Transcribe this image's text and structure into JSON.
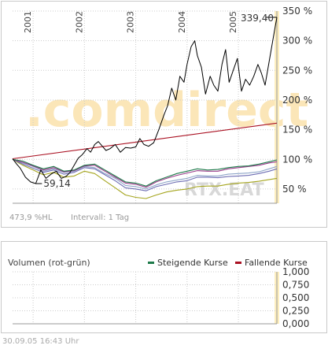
{
  "chart_data": [
    {
      "type": "line",
      "title": "",
      "xlabel": "",
      "ylabel": "",
      "x_range": [
        2000.6,
        2005.75
      ],
      "ylim": [
        26,
        350
      ],
      "y_ticks": [
        50,
        100,
        150,
        200,
        250,
        300,
        350
      ],
      "y_tick_labels": [
        "50 %",
        "100 %",
        "150 %",
        "200 %",
        "250 %",
        "300 %",
        "350 %"
      ],
      "x_ticks": [
        2001,
        2002,
        2003,
        2004,
        2005
      ],
      "x_tick_labels": [
        "2001",
        "2002",
        "2003",
        "2004",
        "2005"
      ],
      "grid": true,
      "annotations": {
        "max_label": "339,40",
        "min_label": "59,14",
        "scale_info": "473,9 %HL",
        "interval": "Intervall: 1 Tag",
        "watermark": ".comdirect",
        "watermark_small": "RTX.EAT"
      },
      "series": [
        {
          "color": "#000000",
          "x": [
            2000.6,
            2000.68,
            2000.75,
            2000.85,
            2000.95,
            2001.05,
            2001.15,
            2001.25,
            2001.35,
            2001.45,
            2001.55,
            2001.65,
            2001.72,
            2001.8,
            2001.88,
            2001.96,
            2002.05,
            2002.12,
            2002.2,
            2002.27,
            2002.35,
            2002.42,
            2002.5,
            2002.6,
            2002.7,
            2002.8,
            2002.9,
            2003.0,
            2003.08,
            2003.16,
            2003.25,
            2003.35,
            2003.45,
            2003.55,
            2003.62,
            2003.7,
            2003.78,
            2003.86,
            2003.94,
            2004.0,
            2004.08,
            2004.15,
            2004.2,
            2004.28,
            2004.36,
            2004.45,
            2004.52,
            2004.6,
            2004.68,
            2004.75,
            2004.82,
            2004.9,
            2004.98,
            2005.06,
            2005.14,
            2005.22,
            2005.3,
            2005.38,
            2005.45,
            2005.52,
            2005.58,
            2005.64,
            2005.7,
            2005.75
          ],
          "values": [
            101,
            92,
            85,
            70,
            62,
            59.14,
            82,
            68,
            75,
            80,
            68,
            72,
            78,
            90,
            102,
            108,
            118,
            112,
            125,
            130,
            122,
            115,
            118,
            125,
            112,
            120,
            119,
            121,
            135,
            125,
            122,
            128,
            150,
            175,
            190,
            220,
            200,
            240,
            230,
            260,
            290,
            300,
            275,
            255,
            210,
            240,
            225,
            215,
            260,
            285,
            230,
            250,
            270,
            215,
            235,
            225,
            240,
            260,
            245,
            225,
            255,
            285,
            315,
            339.4
          ]
        },
        {
          "color": "#aa1122",
          "x": [
            2000.6,
            2005.75
          ],
          "values": [
            101,
            161
          ]
        },
        {
          "color": "#6d6db3",
          "x": [
            2000.6,
            2000.8,
            2001.0,
            2001.2,
            2001.4,
            2001.6,
            2001.8,
            2002.0,
            2002.2,
            2002.4,
            2002.6,
            2002.8,
            2003.0,
            2003.2,
            2003.4,
            2003.6,
            2003.8,
            2004.0,
            2004.2,
            2004.4,
            2004.6,
            2004.8,
            2005.0,
            2005.2,
            2005.4,
            2005.6,
            2005.75
          ],
          "values": [
            100,
            92,
            85,
            78,
            82,
            75,
            78,
            86,
            84,
            74,
            64,
            52,
            50,
            47,
            54,
            58,
            62,
            64,
            70,
            70,
            69,
            71,
            72,
            73,
            76,
            80,
            84
          ]
        },
        {
          "color": "#8fa6c8",
          "x": [
            2000.6,
            2000.8,
            2001.0,
            2001.2,
            2001.4,
            2001.6,
            2001.8,
            2002.0,
            2002.2,
            2002.4,
            2002.6,
            2002.8,
            2003.0,
            2003.2,
            2003.4,
            2003.6,
            2003.8,
            2004.0,
            2004.2,
            2004.4,
            2004.6,
            2004.8,
            2005.0,
            2005.2,
            2005.4,
            2005.6,
            2005.75
          ],
          "values": [
            100,
            94,
            88,
            80,
            84,
            78,
            80,
            88,
            86,
            76,
            68,
            56,
            54,
            50,
            57,
            62,
            65,
            68,
            73,
            72,
            72,
            75,
            76,
            77,
            79,
            84,
            88
          ]
        },
        {
          "color": "#1e7a4a",
          "x": [
            2000.6,
            2000.8,
            2001.0,
            2001.2,
            2001.4,
            2001.6,
            2001.8,
            2002.0,
            2002.2,
            2002.4,
            2002.6,
            2002.8,
            2003.0,
            2003.2,
            2003.4,
            2003.6,
            2003.8,
            2004.0,
            2004.2,
            2004.4,
            2004.6,
            2004.8,
            2005.0,
            2005.2,
            2005.4,
            2005.6,
            2005.75
          ],
          "values": [
            100,
            97,
            90,
            84,
            88,
            80,
            82,
            90,
            92,
            82,
            72,
            62,
            60,
            55,
            64,
            70,
            76,
            80,
            84,
            82,
            83,
            86,
            88,
            89,
            92,
            96,
            99
          ]
        },
        {
          "color": "#9a3b8a",
          "x": [
            2000.6,
            2000.8,
            2001.0,
            2001.2,
            2001.4,
            2001.6,
            2001.8,
            2002.0,
            2002.2,
            2002.4,
            2002.6,
            2002.8,
            2003.0,
            2003.2,
            2003.4,
            2003.6,
            2003.8,
            2004.0,
            2004.2,
            2004.4,
            2004.6,
            2004.8,
            2005.0,
            2005.2,
            2005.4,
            2005.6,
            2005.75
          ],
          "values": [
            100,
            95,
            89,
            82,
            86,
            79,
            81,
            89,
            90,
            80,
            70,
            60,
            58,
            53,
            62,
            68,
            73,
            77,
            81,
            80,
            80,
            84,
            86,
            88,
            90,
            94,
            96
          ]
        },
        {
          "color": "#a5a51e",
          "x": [
            2000.6,
            2000.8,
            2001.0,
            2001.2,
            2001.4,
            2001.6,
            2001.8,
            2002.0,
            2002.2,
            2002.4,
            2002.6,
            2002.8,
            2003.0,
            2003.2,
            2003.4,
            2003.6,
            2003.8,
            2004.0,
            2004.2,
            2004.4,
            2004.6,
            2004.8,
            2005.0,
            2005.2,
            2005.4,
            2005.6,
            2005.75
          ],
          "values": [
            100,
            90,
            82,
            74,
            78,
            70,
            72,
            80,
            76,
            64,
            52,
            40,
            36,
            34,
            40,
            45,
            48,
            50,
            54,
            55,
            55,
            58,
            60,
            61,
            63,
            66,
            68
          ]
        }
      ]
    },
    {
      "type": "bar",
      "title": "Volumen (rot-grün)",
      "ylim": [
        0,
        1
      ],
      "y_ticks": [
        0,
        0.25,
        0.5,
        0.75,
        1
      ],
      "y_tick_labels": [
        "0,000",
        "0,250",
        "0,500",
        "0,750",
        "1,000"
      ],
      "grid": true,
      "legend": [
        {
          "name": "Steigende Kurse",
          "color": "#1e7a4a"
        },
        {
          "name": "Fallende Kurse",
          "color": "#aa1122"
        }
      ],
      "legend_position": "top-right",
      "values": []
    }
  ],
  "footer": {
    "timestamp": "30.09.05   16:43 Uhr"
  },
  "colors": {
    "grid": "#cccccc",
    "highlight_band": "#fdeebf"
  }
}
